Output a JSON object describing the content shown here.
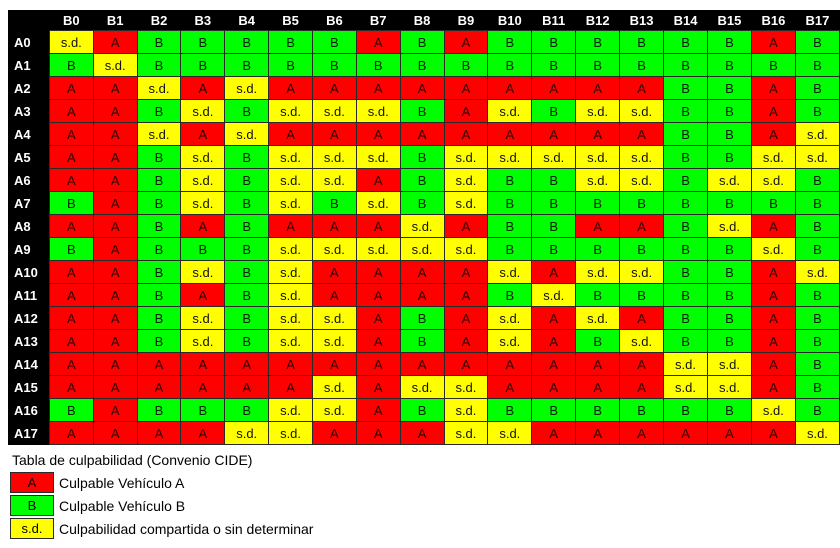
{
  "columns": [
    "B0",
    "B1",
    "B2",
    "B3",
    "B4",
    "B5",
    "B6",
    "B7",
    "B8",
    "B9",
    "B10",
    "B11",
    "B12",
    "B13",
    "B14",
    "B15",
    "B16",
    "B17"
  ],
  "rows": [
    {
      "label": "A0",
      "cells": [
        "s.d.",
        "A",
        "B",
        "B",
        "B",
        "B",
        "B",
        "A",
        "B",
        "A",
        "B",
        "B",
        "B",
        "B",
        "B",
        "B",
        "A",
        "B"
      ]
    },
    {
      "label": "A1",
      "cells": [
        "B",
        "s.d.",
        "B",
        "B",
        "B",
        "B",
        "B",
        "B",
        "B",
        "B",
        "B",
        "B",
        "B",
        "B",
        "B",
        "B",
        "B",
        "B"
      ]
    },
    {
      "label": "A2",
      "cells": [
        "A",
        "A",
        "s.d.",
        "A",
        "s.d.",
        "A",
        "A",
        "A",
        "A",
        "A",
        "A",
        "A",
        "A",
        "A",
        "B",
        "B",
        "A",
        "B"
      ]
    },
    {
      "label": "A3",
      "cells": [
        "A",
        "A",
        "B",
        "s.d.",
        "B",
        "s.d.",
        "s.d.",
        "s.d.",
        "B",
        "A",
        "s.d.",
        "B",
        "s.d.",
        "s.d.",
        "B",
        "B",
        "A",
        "B"
      ]
    },
    {
      "label": "A4",
      "cells": [
        "A",
        "A",
        "s.d.",
        "A",
        "s.d.",
        "A",
        "A",
        "A",
        "A",
        "A",
        "A",
        "A",
        "A",
        "A",
        "B",
        "B",
        "A",
        "s.d."
      ]
    },
    {
      "label": "A5",
      "cells": [
        "A",
        "A",
        "B",
        "s.d.",
        "B",
        "s.d.",
        "s.d.",
        "s.d.",
        "B",
        "s.d.",
        "s.d.",
        "s.d.",
        "s.d.",
        "s.d.",
        "B",
        "B",
        "s.d.",
        "s.d."
      ]
    },
    {
      "label": "A6",
      "cells": [
        "A",
        "A",
        "B",
        "s.d.",
        "B",
        "s.d.",
        "s.d.",
        "A",
        "B",
        "s.d.",
        "B",
        "B",
        "s.d.",
        "s.d.",
        "B",
        "s.d.",
        "s.d.",
        "B"
      ]
    },
    {
      "label": "A7",
      "cells": [
        "B",
        "A",
        "B",
        "s.d.",
        "B",
        "s.d.",
        "B",
        "s.d.",
        "B",
        "s.d.",
        "B",
        "B",
        "B",
        "B",
        "B",
        "B",
        "B",
        "B"
      ]
    },
    {
      "label": "A8",
      "cells": [
        "A",
        "A",
        "B",
        "A",
        "B",
        "A",
        "A",
        "A",
        "s.d.",
        "A",
        "B",
        "B",
        "A",
        "A",
        "B",
        "s.d.",
        "A",
        "B"
      ]
    },
    {
      "label": "A9",
      "cells": [
        "B",
        "A",
        "B",
        "B",
        "B",
        "s.d.",
        "s.d.",
        "s.d.",
        "s.d.",
        "s.d.",
        "B",
        "B",
        "B",
        "B",
        "B",
        "B",
        "s.d.",
        "B"
      ]
    },
    {
      "label": "A10",
      "cells": [
        "A",
        "A",
        "B",
        "s.d.",
        "B",
        "s.d.",
        "A",
        "A",
        "A",
        "A",
        "s.d.",
        "A",
        "s.d.",
        "s.d.",
        "B",
        "B",
        "A",
        "s.d."
      ]
    },
    {
      "label": "A11",
      "cells": [
        "A",
        "A",
        "B",
        "A",
        "B",
        "s.d.",
        "A",
        "A",
        "A",
        "A",
        "B",
        "s.d.",
        "B",
        "B",
        "B",
        "B",
        "A",
        "B"
      ]
    },
    {
      "label": "A12",
      "cells": [
        "A",
        "A",
        "B",
        "s.d.",
        "B",
        "s.d.",
        "s.d.",
        "A",
        "B",
        "A",
        "s.d.",
        "A",
        "s.d.",
        "A",
        "B",
        "B",
        "A",
        "B"
      ]
    },
    {
      "label": "A13",
      "cells": [
        "A",
        "A",
        "B",
        "s.d.",
        "B",
        "s.d.",
        "s.d.",
        "A",
        "B",
        "A",
        "s.d.",
        "A",
        "B",
        "s.d.",
        "B",
        "B",
        "A",
        "B"
      ]
    },
    {
      "label": "A14",
      "cells": [
        "A",
        "A",
        "A",
        "A",
        "A",
        "A",
        "A",
        "A",
        "A",
        "A",
        "A",
        "A",
        "A",
        "A",
        "s.d.",
        "s.d.",
        "A",
        "B"
      ]
    },
    {
      "label": "A15",
      "cells": [
        "A",
        "A",
        "A",
        "A",
        "A",
        "A",
        "s.d.",
        "A",
        "s.d.",
        "s.d.",
        "A",
        "A",
        "A",
        "A",
        "s.d.",
        "s.d.",
        "A",
        "B"
      ]
    },
    {
      "label": "A16",
      "cells": [
        "B",
        "A",
        "B",
        "B",
        "B",
        "s.d.",
        "s.d.",
        "A",
        "B",
        "s.d.",
        "B",
        "B",
        "B",
        "B",
        "B",
        "B",
        "s.d.",
        "B"
      ]
    },
    {
      "label": "A17",
      "cells": [
        "A",
        "A",
        "A",
        "A",
        "s.d.",
        "s.d.",
        "A",
        "A",
        "A",
        "s.d.",
        "s.d.",
        "A",
        "A",
        "A",
        "A",
        "A",
        "A",
        "s.d."
      ]
    }
  ],
  "caption": "Tabla de culpabilidad (Convenio CIDE)",
  "legend": [
    {
      "swatch_text": "A",
      "label": "Culpable Vehículo A",
      "color": "#ff0000"
    },
    {
      "swatch_text": "B",
      "label": "Culpable Vehículo B",
      "color": "#00ff00"
    },
    {
      "swatch_text": "s.d.",
      "label": "Culpabilidad compartida o sin determinar",
      "color": "#ffff00"
    }
  ]
}
